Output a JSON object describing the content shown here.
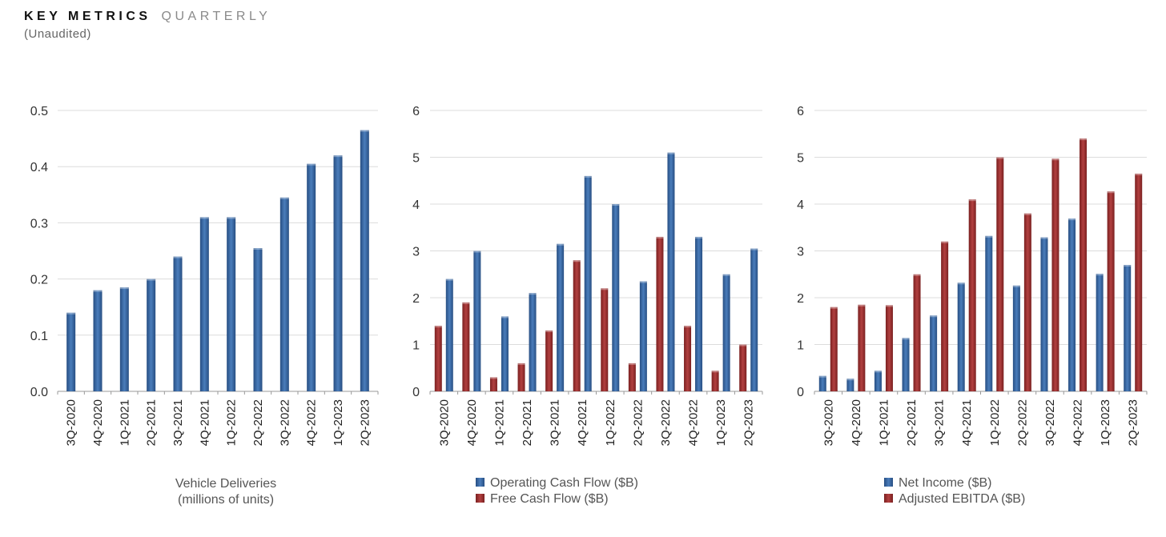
{
  "header": {
    "title_main": "KEY METRICS",
    "title_sub": "QUARTERLY",
    "subtitle": "(Unaudited)"
  },
  "colors": {
    "blue": "#3a6aa8",
    "red": "#9b3030"
  },
  "chart_data": [
    {
      "type": "bar",
      "categories": [
        "3Q-2020",
        "4Q-2020",
        "1Q-2021",
        "2Q-2021",
        "3Q-2021",
        "4Q-2021",
        "1Q-2022",
        "2Q-2022",
        "3Q-2022",
        "4Q-2022",
        "1Q-2023",
        "2Q-2023"
      ],
      "series": [
        {
          "name": "",
          "color": "#3a6aa8",
          "values": [
            0.14,
            0.18,
            0.185,
            0.2,
            0.24,
            0.31,
            0.31,
            0.255,
            0.345,
            0.405,
            0.42,
            0.465
          ]
        }
      ],
      "yticks": [
        "0.0",
        "0.1",
        "0.2",
        "0.3",
        "0.4",
        "0.5"
      ],
      "ylim": [
        0,
        0.5
      ],
      "grid": true,
      "caption_lines": [
        "Vehicle Deliveries",
        "(millions of units)"
      ]
    },
    {
      "type": "bar",
      "categories": [
        "3Q-2020",
        "4Q-2020",
        "1Q-2021",
        "2Q-2021",
        "3Q-2021",
        "4Q-2021",
        "1Q-2022",
        "2Q-2022",
        "3Q-2022",
        "4Q-2022",
        "1Q-2023",
        "2Q-2023"
      ],
      "series": [
        {
          "name": "Free Cash Flow ($B)",
          "color": "#9b3030",
          "values": [
            1.4,
            1.9,
            0.3,
            0.6,
            1.3,
            2.8,
            2.2,
            0.6,
            3.3,
            1.4,
            0.44,
            1.0
          ]
        },
        {
          "name": "Operating Cash Flow ($B)",
          "color": "#3a6aa8",
          "values": [
            2.4,
            3.0,
            1.6,
            2.1,
            3.15,
            4.6,
            4.0,
            2.35,
            5.1,
            3.3,
            2.5,
            3.05
          ]
        }
      ],
      "yticks": [
        "0",
        "1",
        "2",
        "3",
        "4",
        "5",
        "6"
      ],
      "ylim": [
        0,
        6
      ],
      "grid": true,
      "legend": [
        {
          "label": "Operating Cash Flow ($B)",
          "color": "#3a6aa8"
        },
        {
          "label": "Free Cash Flow ($B)",
          "color": "#9b3030"
        }
      ]
    },
    {
      "type": "bar",
      "categories": [
        "3Q-2020",
        "4Q-2020",
        "1Q-2021",
        "2Q-2021",
        "3Q-2021",
        "4Q-2021",
        "1Q-2022",
        "2Q-2022",
        "3Q-2022",
        "4Q-2022",
        "1Q-2023",
        "2Q-2023"
      ],
      "series": [
        {
          "name": "Net Income ($B)",
          "color": "#3a6aa8",
          "values": [
            0.33,
            0.27,
            0.44,
            1.14,
            1.62,
            2.32,
            3.32,
            2.26,
            3.29,
            3.69,
            2.51,
            2.7
          ]
        },
        {
          "name": "Adjusted EBITDA ($B)",
          "color": "#9b3030",
          "values": [
            1.8,
            1.85,
            1.84,
            2.5,
            3.2,
            4.1,
            5.0,
            3.8,
            4.97,
            5.4,
            4.27,
            4.65
          ]
        }
      ],
      "yticks": [
        "0",
        "1",
        "2",
        "3",
        "4",
        "5",
        "6"
      ],
      "ylim": [
        0,
        6
      ],
      "grid": true,
      "legend": [
        {
          "label": "Net Income ($B)",
          "color": "#3a6aa8"
        },
        {
          "label": "Adjusted EBITDA ($B)",
          "color": "#9b3030"
        }
      ]
    }
  ]
}
